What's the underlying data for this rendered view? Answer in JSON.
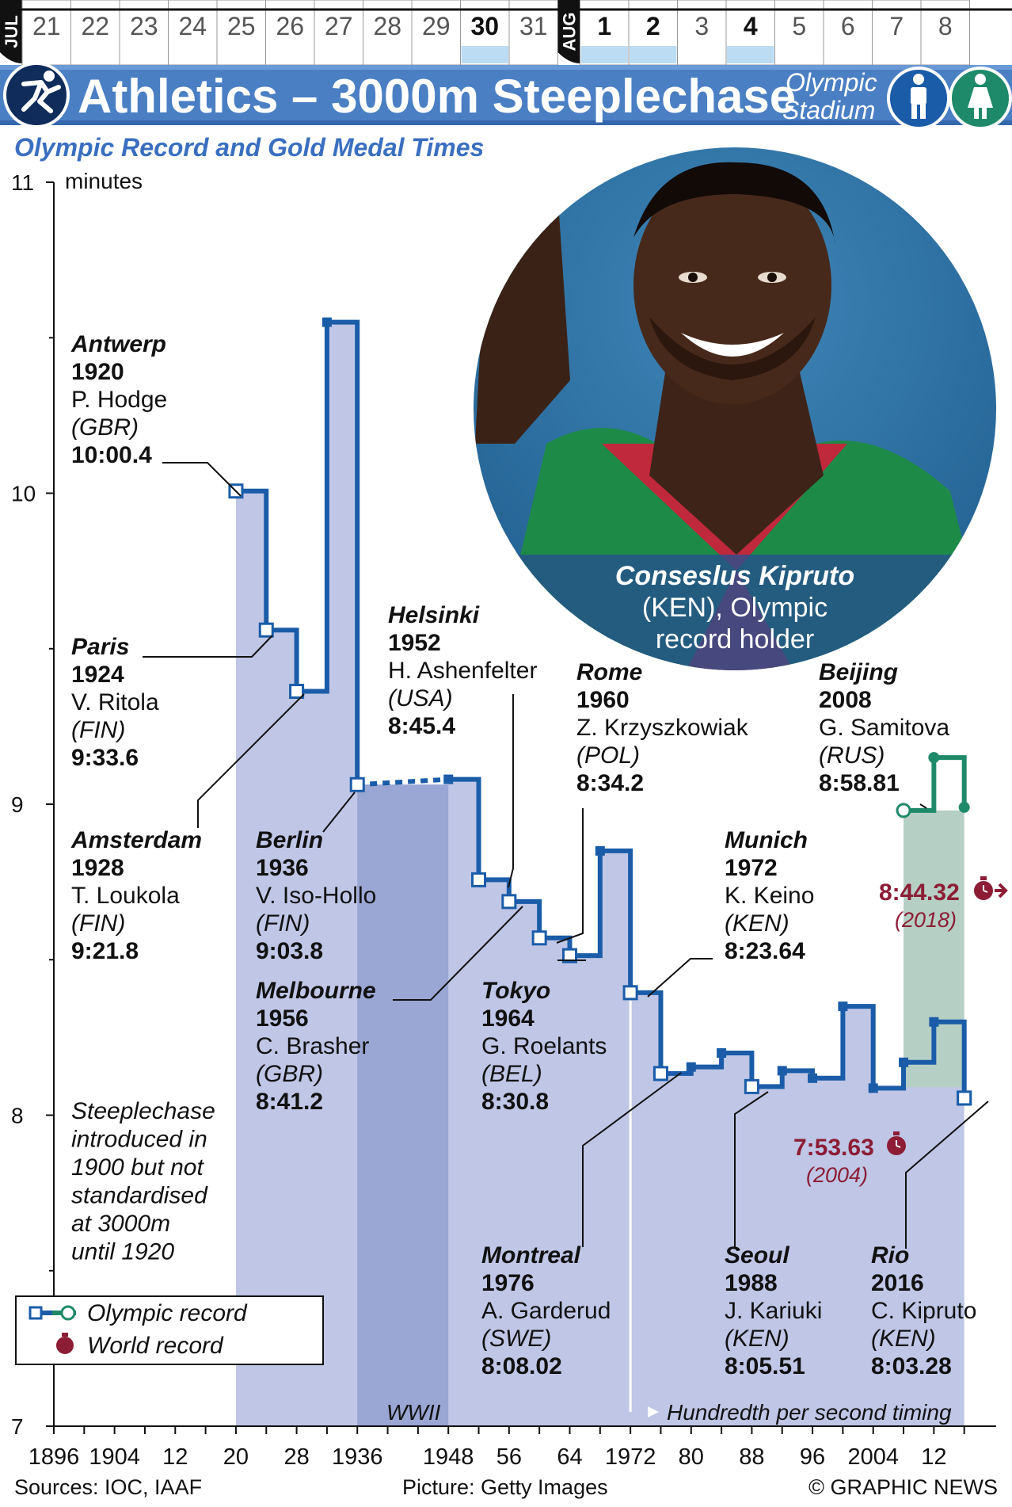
{
  "calendar": {
    "months": [
      {
        "label": "JUL",
        "days": [
          "21",
          "22",
          "23",
          "24",
          "25",
          "26",
          "27",
          "28",
          "29",
          "30",
          "31"
        ]
      },
      {
        "label": "AUG",
        "days": [
          "1",
          "2",
          "3",
          "4",
          "5",
          "6",
          "7",
          "8"
        ]
      }
    ],
    "highlighted_days": [
      "30",
      "1",
      "2",
      "4"
    ]
  },
  "header": {
    "title": "Athletics – 3000m Steeplechase",
    "venue_line1": "Olympic",
    "venue_line2": "Stadium",
    "sport_icon": "runner-icon",
    "gender_icons": [
      "male-icon",
      "female-icon"
    ]
  },
  "subtitle": "Olympic Record and Gold Medal Times",
  "photo": {
    "caption_name": "Conseslus Kipruto",
    "caption_rest1": "(KEN), Olympic",
    "caption_rest2": "record holder"
  },
  "annotations": [
    {
      "city": "Antwerp",
      "year": "1920",
      "athlete": "P. Hodge",
      "country": "(GBR)",
      "time": "10:00.4"
    },
    {
      "city": "Paris",
      "year": "1924",
      "athlete": "V. Ritola",
      "country": "(FIN)",
      "time": "9:33.6"
    },
    {
      "city": "Amsterdam",
      "year": "1928",
      "athlete": "T. Loukola",
      "country": "(FIN)",
      "time": "9:21.8"
    },
    {
      "city": "Berlin",
      "year": "1936",
      "athlete": "V. Iso-Hollo",
      "country": "(FIN)",
      "time": "9:03.8"
    },
    {
      "city": "Melbourne",
      "year": "1956",
      "athlete": "C. Brasher",
      "country": "(GBR)",
      "time": "8:41.2"
    },
    {
      "city": "Helsinki",
      "year": "1952",
      "athlete": "H. Ashenfelter",
      "country": "(USA)",
      "time": "8:45.4"
    },
    {
      "city": "Rome",
      "year": "1960",
      "athlete": "Z. Krzyszkowiak",
      "country": "(POL)",
      "time": "8:34.2"
    },
    {
      "city": "Tokyo",
      "year": "1964",
      "athlete": "G. Roelants",
      "country": "(BEL)",
      "time": "8:30.8"
    },
    {
      "city": "Munich",
      "year": "1972",
      "athlete": "K. Keino",
      "country": "(KEN)",
      "time": "8:23.64"
    },
    {
      "city": "Beijing",
      "year": "2008",
      "athlete": "G. Samitova",
      "country": "(RUS)",
      "time": "8:58.81"
    },
    {
      "city": "Montreal",
      "year": "1976",
      "athlete": "A. Garderud",
      "country": "(SWE)",
      "time": "8:08.02"
    },
    {
      "city": "Seoul",
      "year": "1988",
      "athlete": "J. Kariuki",
      "country": "(KEN)",
      "time": "8:05.51"
    },
    {
      "city": "Rio",
      "year": "2016",
      "athlete": "C. Kipruto",
      "country": "(KEN)",
      "time": "8:03.28"
    }
  ],
  "world_records": [
    {
      "time": "8:44.32",
      "year": "(2018)"
    },
    {
      "time": "7:53.63",
      "year": "(2004)"
    }
  ],
  "note": [
    "Steeplechase",
    "introduced in",
    "1900 but not",
    "standardised",
    "at 3000m",
    "until 1920"
  ],
  "wwii_label": "WWII",
  "timing_label": "Hundredth per second timing",
  "legend": {
    "olympic_record": "Olympic record",
    "world_record": "World record"
  },
  "footer": {
    "sources": "Sources: IOC, IAAF",
    "picture": "Picture: Getty Images",
    "copyright": "© GRAPHIC NEWS"
  },
  "chart_data": {
    "type": "line",
    "title": "Olympic Record and Gold Medal Times",
    "ylabel": "minutes",
    "ylim": [
      7,
      11
    ],
    "xlim": [
      1896,
      2020
    ],
    "yticks": [
      "7",
      "8",
      "9",
      "10",
      "11"
    ],
    "xtick_labels": [
      "1896",
      "1904",
      "12",
      "20",
      "28",
      "1936",
      "1948",
      "56",
      "64",
      "1972",
      "80",
      "88",
      "96",
      "2004",
      "12"
    ],
    "xtick_values": [
      1896,
      1904,
      1912,
      1920,
      1928,
      1936,
      1948,
      1956,
      1964,
      1972,
      1980,
      1988,
      1996,
      2004,
      2012
    ],
    "series": [
      {
        "name": "Olympic record",
        "gender": "men",
        "color": "#1a5ca8",
        "x": [
          1920,
          1924,
          1928,
          1932,
          1936,
          1948,
          1952,
          1956,
          1960,
          1964,
          1968,
          1972,
          1976,
          1980,
          1984,
          1988,
          1992,
          1996,
          2000,
          2004,
          2008,
          2012,
          2016
        ],
        "y": [
          10.007,
          9.56,
          9.363,
          10.55,
          9.063,
          9.08,
          8.757,
          8.687,
          8.57,
          8.513,
          8.85,
          8.394,
          8.134,
          8.155,
          8.2,
          8.092,
          8.143,
          8.119,
          8.35,
          8.087,
          8.17,
          8.3,
          8.055
        ],
        "olympic_record_points": [
          1920,
          1924,
          1928,
          1936,
          1952,
          1956,
          1960,
          1964,
          1972,
          1976,
          1988,
          2016
        ]
      },
      {
        "name": "Olympic record",
        "gender": "women",
        "color": "#1f8a6a",
        "x": [
          2008,
          2012,
          2016
        ],
        "y": [
          8.98,
          9.15,
          8.99
        ],
        "olympic_record_points": [
          2008
        ]
      }
    ],
    "world_records": [
      {
        "gender": "women",
        "time": "8:44.32",
        "year": 2018
      },
      {
        "gender": "men",
        "time": "7:53.63",
        "year": 2004
      }
    ],
    "shaded_periods": [
      {
        "label": "WWII",
        "from": 1936,
        "to": 1948
      }
    ],
    "markers": [
      {
        "label": "Hundredth per second timing",
        "year": 1972
      }
    ]
  }
}
